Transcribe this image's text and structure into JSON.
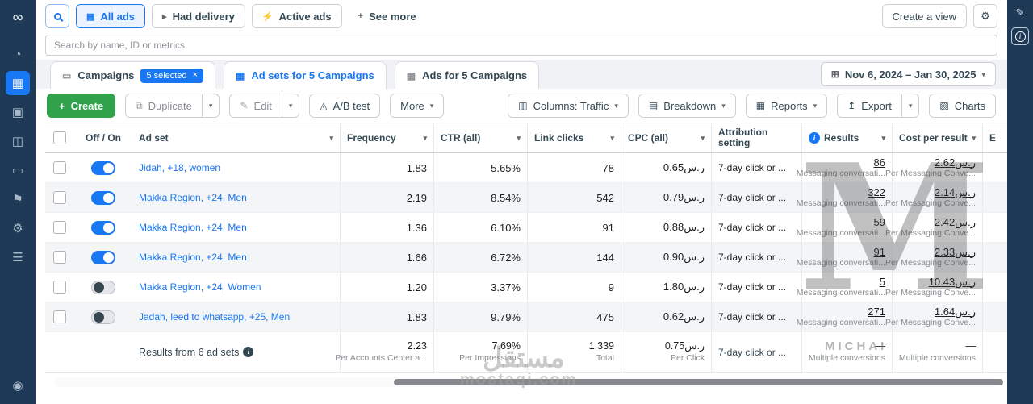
{
  "icons": {
    "caret": "▾",
    "close": "×",
    "plus": "+",
    "grid": "▦",
    "send": "▸",
    "bolt": "⚡",
    "sliders": "⚙",
    "calendar": "⊞",
    "duplicate": "⧉",
    "pencil": "✎",
    "flask": "◬",
    "columns": "▥",
    "breakdown": "▤",
    "reports": "▦",
    "export": "↥",
    "charts": "▧",
    "folder": "▭",
    "info": "i",
    "logo": "∞",
    "menu": "☰"
  },
  "left_rail": {
    "icons": [
      {
        "name": "meta-logo",
        "glyph": "∞"
      },
      {
        "name": "overview",
        "glyph": "◔"
      },
      {
        "name": "campaigns",
        "glyph": "▦"
      },
      {
        "name": "pages",
        "glyph": "▣"
      },
      {
        "name": "audiences",
        "glyph": "◫"
      },
      {
        "name": "billing",
        "glyph": "▭"
      },
      {
        "name": "ads",
        "glyph": "⚑"
      },
      {
        "name": "settings",
        "glyph": "⚙"
      },
      {
        "name": "menu",
        "glyph": "☰"
      },
      {
        "name": "help",
        "glyph": "◉"
      }
    ]
  },
  "filter_bar": {
    "filters": [
      "All ads",
      "Had delivery",
      "Active ads",
      "See more"
    ],
    "create_view_label": "Create a view"
  },
  "search": {
    "placeholder": "Search by name, ID or metrics"
  },
  "tabs": {
    "campaigns": {
      "label": "Campaigns",
      "badge": "5 selected"
    },
    "adsets": {
      "label": "Ad sets for 5 Campaigns"
    },
    "ads": {
      "label": "Ads for 5 Campaigns"
    }
  },
  "date_range": {
    "label": "Nov 6, 2024 – Jan 30, 2025"
  },
  "toolbar": {
    "create": "Create",
    "duplicate": "Duplicate",
    "edit": "Edit",
    "ab_test": "A/B test",
    "more": "More",
    "columns": "Columns: Traffic",
    "breakdown": "Breakdown",
    "reports": "Reports",
    "export": "Export",
    "charts": "Charts"
  },
  "table": {
    "headers": {
      "off_on": "Off / On",
      "ad_set": "Ad set",
      "frequency": "Frequency",
      "ctr": "CTR (all)",
      "link_clicks": "Link clicks",
      "cpc": "CPC (all)",
      "attribution": "Attribution setting",
      "results": "Results",
      "cost_per_result": "Cost per result",
      "last": "E"
    },
    "rows": [
      {
        "on": true,
        "name": "Jidah, +18, women",
        "frequency": "1.83",
        "ctr": "5.65%",
        "link_clicks": "78",
        "cpc": "0.65ر.س",
        "attribution": "7-day click or ...",
        "results": "86",
        "results_sub": "Messaging conversati...",
        "cost": "2.62ر.س",
        "cost_sub": "Per Messaging Conve..."
      },
      {
        "on": true,
        "name": "Makka Region, +24, Men",
        "frequency": "2.19",
        "ctr": "8.54%",
        "link_clicks": "542",
        "cpc": "0.79ر.س",
        "attribution": "7-day click or ...",
        "results": "322",
        "results_sub": "Messaging conversati...",
        "cost": "2.14ر.س",
        "cost_sub": "Per Messaging Conve..."
      },
      {
        "on": true,
        "name": "Makka Region, +24, Men",
        "frequency": "1.36",
        "ctr": "6.10%",
        "link_clicks": "91",
        "cpc": "0.88ر.س",
        "attribution": "7-day click or ...",
        "results": "59",
        "results_sub": "Messaging conversati...",
        "cost": "2.42ر.س",
        "cost_sub": "Per Messaging Conve..."
      },
      {
        "on": true,
        "name": "Makka Region, +24, Men",
        "frequency": "1.66",
        "ctr": "6.72%",
        "link_clicks": "144",
        "cpc": "0.90ر.س",
        "attribution": "7-day click or ...",
        "results": "91",
        "results_sub": "Messaging conversati...",
        "cost": "2.33ر.س",
        "cost_sub": "Per Messaging Conve..."
      },
      {
        "on": false,
        "name": "Makka Region, +24, Women",
        "frequency": "1.20",
        "ctr": "3.37%",
        "link_clicks": "9",
        "cpc": "1.80ر.س",
        "attribution": "7-day click or ...",
        "results": "5",
        "results_sub": "Messaging conversati...",
        "cost": "10.43ر.س",
        "cost_sub": "Per Messaging Conve..."
      },
      {
        "on": false,
        "name": "Jadah, leed to whatsapp, +25, Men",
        "frequency": "1.83",
        "ctr": "9.79%",
        "link_clicks": "475",
        "cpc": "0.62ر.س",
        "attribution": "7-day click or ...",
        "results": "271",
        "results_sub": "Messaging conversati...",
        "cost": "1.64ر.س",
        "cost_sub": "Per Messaging Conve..."
      }
    ],
    "footer": {
      "label": "Results from 6 ad sets",
      "frequency": "2.23",
      "frequency_sub": "Per Accounts Center a...",
      "ctr": "7.69%",
      "ctr_sub": "Per Impressions",
      "link_clicks": "1,339",
      "link_clicks_sub": "Total",
      "cpc": "0.75ر.س",
      "cpc_sub": "Per Click",
      "attribution": "7-day click or ...",
      "results": "—",
      "results_sub": "Multiple conversions",
      "cost": "—",
      "cost_sub": "Multiple conversions"
    }
  },
  "watermarks": {
    "monogram": "M",
    "name": "MICHAI",
    "arabic": "مستقل",
    "domain": "mostaqi.com"
  }
}
